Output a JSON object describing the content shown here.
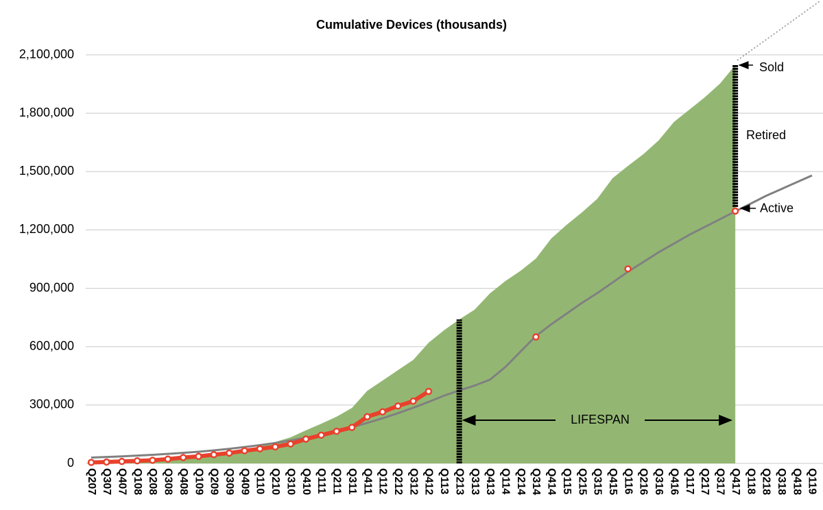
{
  "chart_data": {
    "type": "line",
    "title": "Cumulative Devices (thousands)",
    "categories": [
      "Q207",
      "Q307",
      "Q407",
      "Q108",
      "Q208",
      "Q308",
      "Q408",
      "Q109",
      "Q209",
      "Q309",
      "Q409",
      "Q110",
      "Q210",
      "Q310",
      "Q410",
      "Q111",
      "Q211",
      "Q311",
      "Q411",
      "Q112",
      "Q212",
      "Q312",
      "Q412",
      "Q113",
      "Q213",
      "Q313",
      "Q413",
      "Q114",
      "Q214",
      "Q314",
      "Q414",
      "Q115",
      "Q215",
      "Q315",
      "Q415",
      "Q116",
      "Q216",
      "Q316",
      "Q416",
      "Q117",
      "Q217",
      "Q317",
      "Q417",
      "Q118",
      "Q218",
      "Q318",
      "Q418",
      "Q119"
    ],
    "series": [
      {
        "style": "area",
        "color": "#93b773",
        "values": [
          0,
          1000,
          3000,
          5000,
          7000,
          14000,
          20000,
          28000,
          36000,
          45000,
          56000,
          92000,
          110000,
          134000,
          170000,
          204000,
          240000,
          285000,
          373000,
          426000,
          479000,
          532000,
          620000,
          684000,
          740000,
          790000,
          874000,
          937000,
          990000,
          1053000,
          1156000,
          1226000,
          1290000,
          1360000,
          1466000,
          1529000,
          1589000,
          1660000,
          1755000,
          1818000,
          1881000,
          1952000,
          2047000,
          null,
          null,
          null,
          null,
          null
        ]
      },
      {
        "style": "line",
        "color": "#808080",
        "values": [
          30000,
          33000,
          36000,
          40000,
          44000,
          49000,
          54000,
          60000,
          67000,
          75000,
          84000,
          94000,
          105000,
          118000,
          132000,
          148000,
          166000,
          186000,
          208000,
          232000,
          258000,
          286000,
          316000,
          348000,
          375000,
          400000,
          430000,
          495000,
          575000,
          655000,
          715000,
          770000,
          825000,
          875000,
          930000,
          985000,
          1035000,
          1085000,
          1130000,
          1175000,
          1215000,
          1255000,
          1295000,
          1335000,
          1375000,
          1410000,
          1445000,
          1480000
        ]
      },
      {
        "style": "line-markers",
        "color": "#e8412c",
        "values": [
          5000,
          7000,
          10000,
          13000,
          16000,
          22000,
          30000,
          36000,
          45000,
          53000,
          65000,
          75000,
          85000,
          100000,
          125000,
          145000,
          165000,
          185000,
          240000,
          265000,
          295000,
          320000,
          370000,
          null,
          null,
          null,
          null,
          null,
          null,
          null,
          null,
          null,
          null,
          null,
          null,
          null,
          null,
          null,
          null,
          null,
          null,
          null,
          null,
          null,
          null,
          null,
          null,
          null
        ]
      },
      {
        "style": "markers",
        "color": "#e8412c",
        "values": [
          null,
          null,
          null,
          null,
          null,
          null,
          null,
          null,
          null,
          null,
          null,
          null,
          null,
          null,
          null,
          null,
          null,
          null,
          null,
          null,
          null,
          null,
          null,
          null,
          null,
          null,
          null,
          null,
          null,
          650000,
          null,
          null,
          null,
          null,
          null,
          1000000,
          null,
          null,
          null,
          null,
          null,
          null,
          1297000,
          null,
          null,
          null,
          null,
          null
        ]
      }
    ],
    "ylim": [
      0,
      2100000
    ],
    "yticks": [
      0,
      {
        "value": 300000,
        "label": "300,000"
      },
      {
        "value": 600000,
        "label": "600,000"
      },
      {
        "value": 900000,
        "label": "900,000"
      },
      {
        "value": 1200000,
        "label": "1,200,000"
      },
      {
        "value": 1500000,
        "label": "1,500,000"
      },
      {
        "value": 1800000,
        "label": "1,800,000"
      },
      {
        "value": 2100000,
        "label": "2,100,000"
      }
    ],
    "grid": true,
    "annotations": {
      "sold": "Sold",
      "retired": "Retired",
      "active": "Active",
      "lifespan": "LIFESPAN"
    }
  }
}
